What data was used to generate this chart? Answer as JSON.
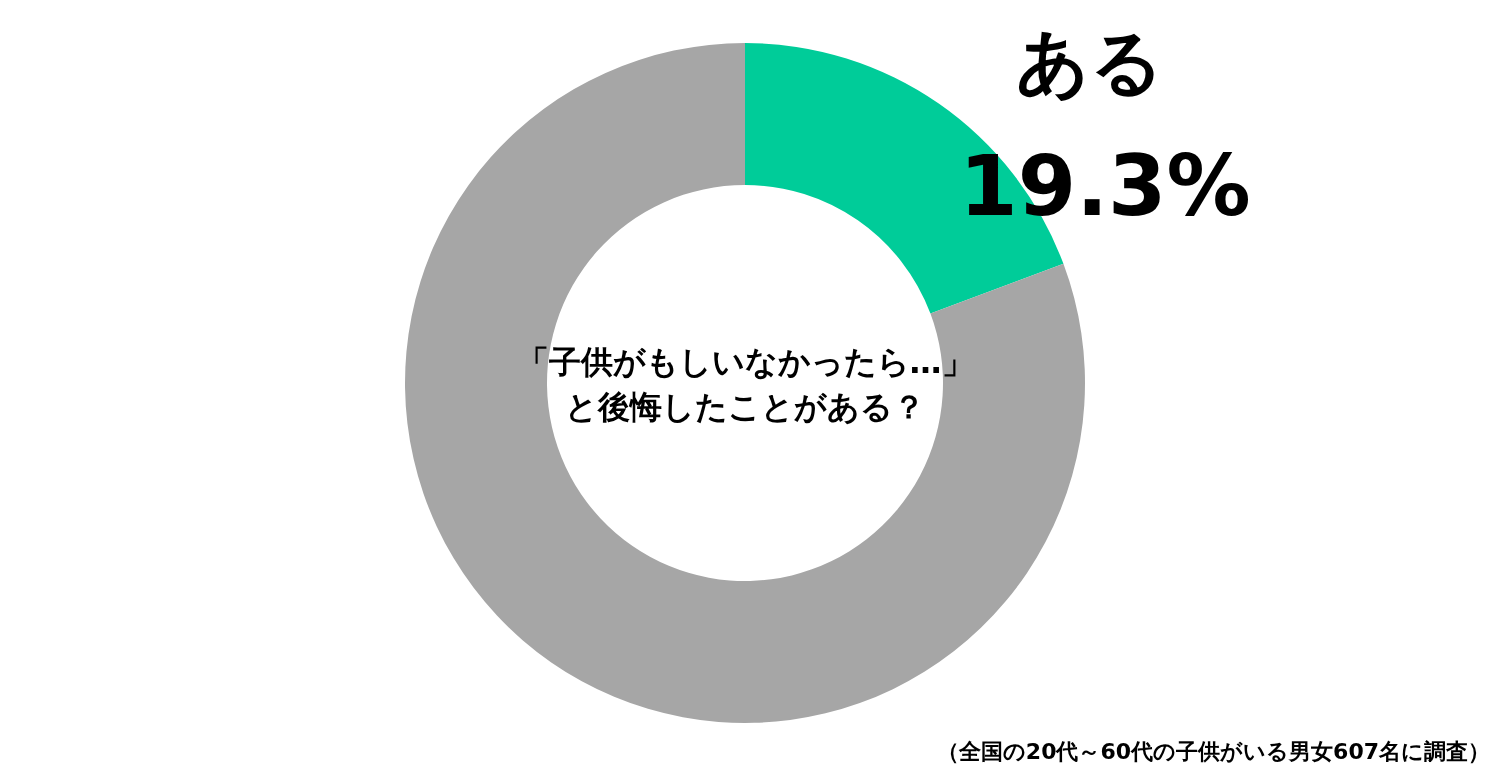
{
  "chart_data": {
    "type": "donut",
    "title": [
      "「子供がもしいなかったら…」",
      "と後悔したことがある？"
    ],
    "categories": [
      "ある",
      null
    ],
    "values": [
      19.3,
      80.7
    ],
    "colors": [
      "#00cc99",
      "#a6a6a6"
    ],
    "value_labels": [
      "19.3%",
      null
    ],
    "annotations": [
      "（全国の20代～60代の子供がいる男女607名に調査）"
    ]
  }
}
